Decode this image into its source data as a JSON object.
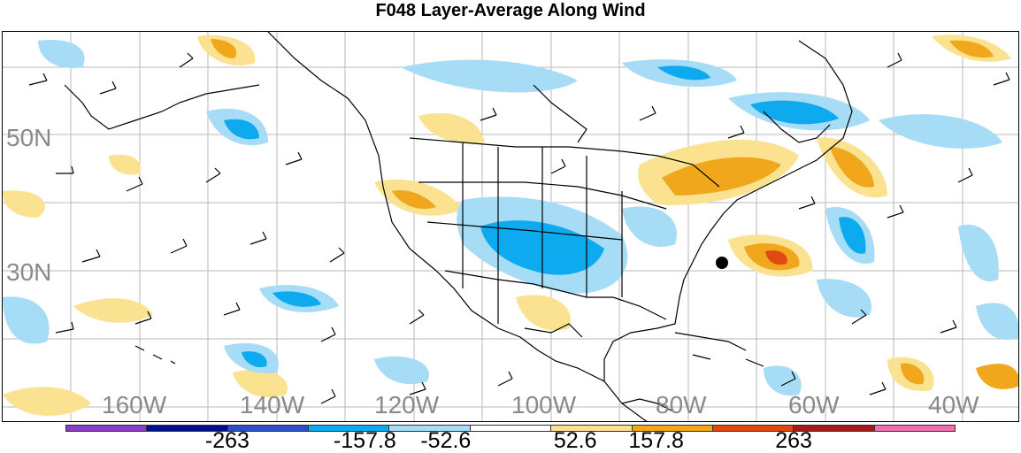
{
  "title": "F048 Layer-Average Along Wind",
  "lat_labels": [
    "50N",
    "30N"
  ],
  "lon_labels": [
    "160W",
    "140W",
    "120W",
    "100W",
    "80W",
    "60W",
    "40W"
  ],
  "colorbar": {
    "colors": [
      "#8a3fc8",
      "#000f8c",
      "#2c50c8",
      "#0eaaf0",
      "#a6dcf5",
      "#ffffff",
      "#fbe290",
      "#f0a71b",
      "#e04a12",
      "#a8191b",
      "#f06fb0"
    ],
    "labels": [
      "-263",
      "-157.8",
      "-52.6",
      "52.6",
      "157.8",
      "263"
    ]
  },
  "marker": {
    "label": "storm-center-dot"
  }
}
